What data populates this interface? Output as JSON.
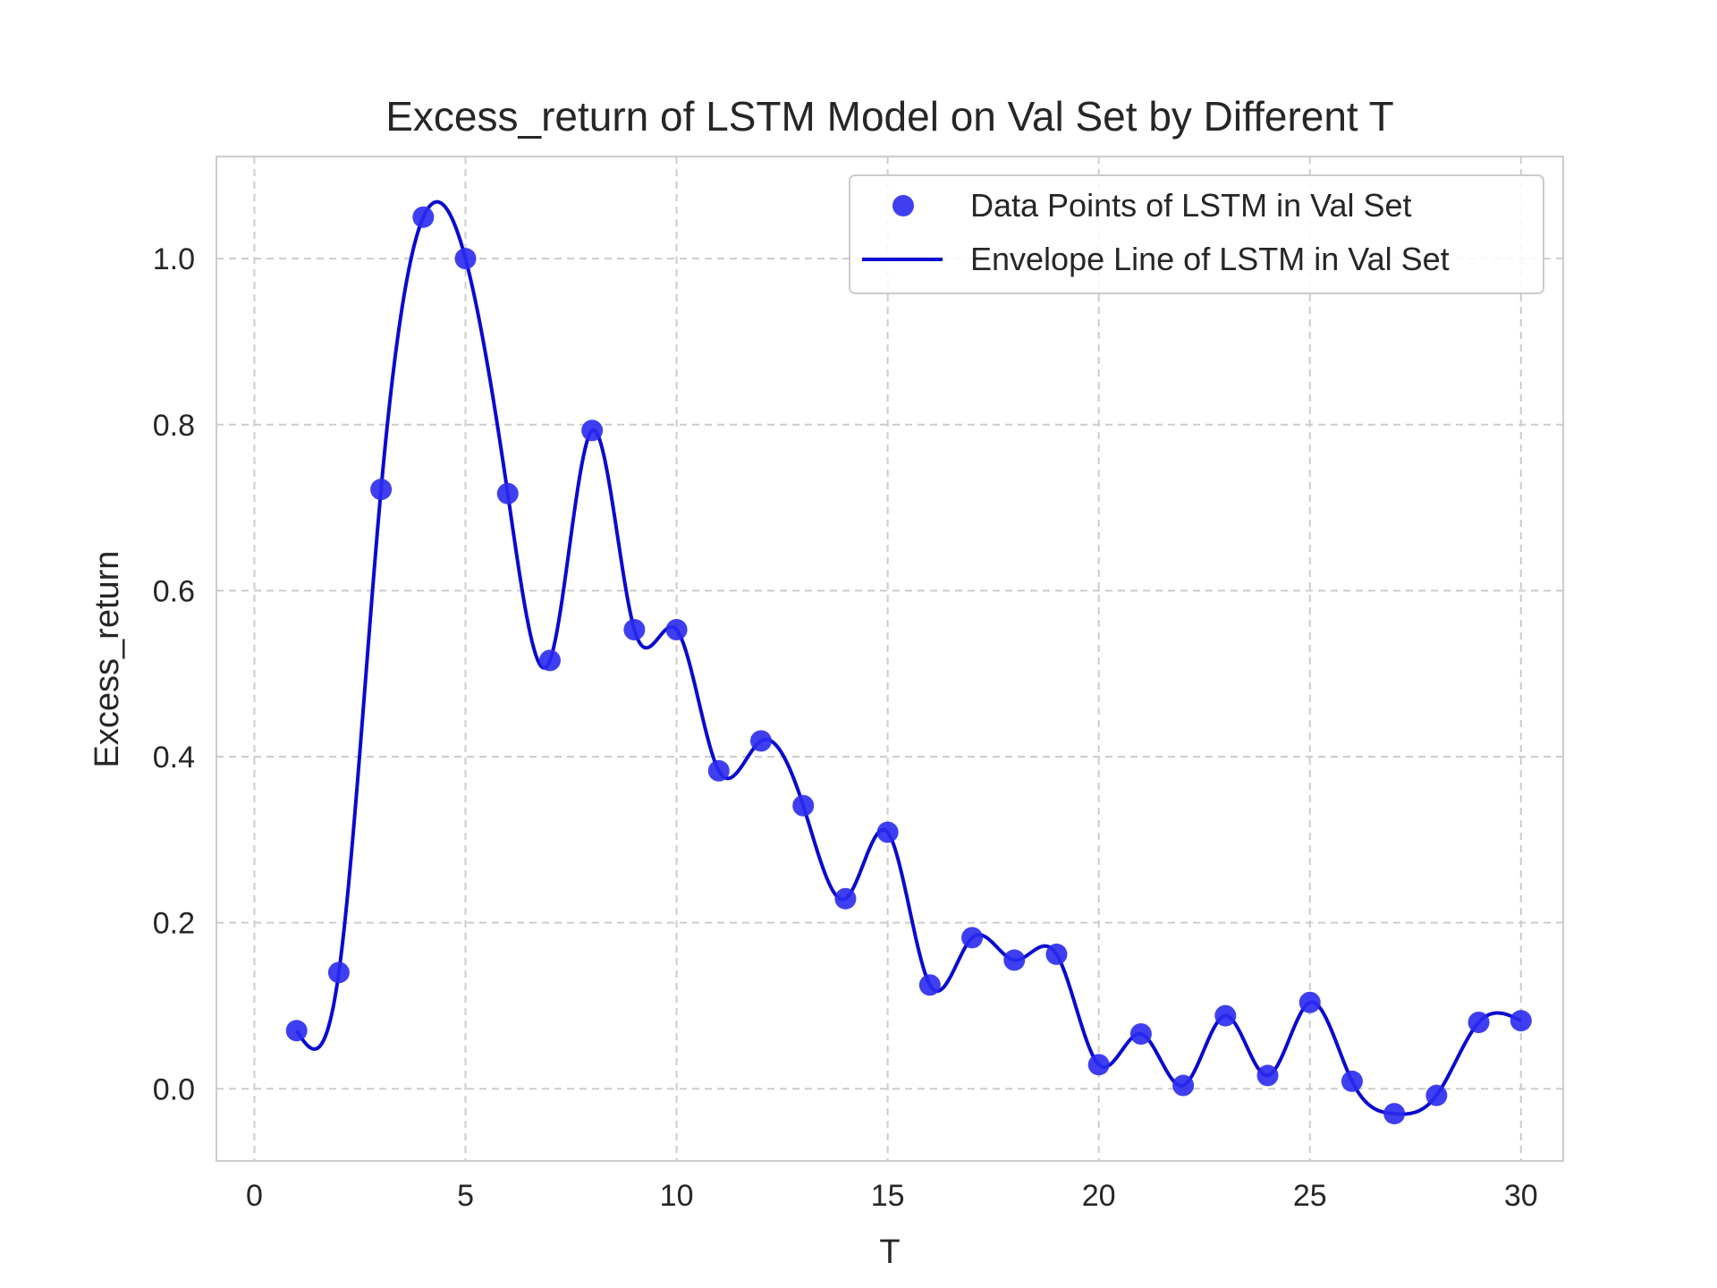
{
  "chart_data": {
    "type": "scatter",
    "title": "Excess_return of LSTM Model on Val Set by Different T",
    "xlabel": "T",
    "ylabel": "Excess_return",
    "xlim": [
      -0.9,
      31.0
    ],
    "ylim": [
      -0.087,
      1.123
    ],
    "xticks": [
      0,
      5,
      10,
      15,
      20,
      25,
      30
    ],
    "yticks": [
      0.0,
      0.2,
      0.4,
      0.6,
      0.8,
      1.0
    ],
    "xtick_labels": [
      "0",
      "5",
      "10",
      "15",
      "20",
      "25",
      "30"
    ],
    "ytick_labels": [
      "0.0",
      "0.2",
      "0.4",
      "0.6",
      "0.8",
      "1.0"
    ],
    "grid": true,
    "legend_position": "top-right",
    "series": [
      {
        "name": "Data Points of LSTM in Val Set",
        "kind": "scatter",
        "color": "#2a2af0",
        "x": [
          1,
          2,
          3,
          4,
          5,
          6,
          7,
          8,
          9,
          10,
          11,
          12,
          13,
          14,
          15,
          16,
          17,
          18,
          19,
          20,
          21,
          22,
          23,
          24,
          25,
          26,
          27,
          28,
          29,
          30
        ],
        "y": [
          0.07,
          0.14,
          0.722,
          1.05,
          1.0,
          0.717,
          0.516,
          0.793,
          0.553,
          0.553,
          0.383,
          0.419,
          0.341,
          0.229,
          0.309,
          0.125,
          0.182,
          0.155,
          0.162,
          0.029,
          0.066,
          0.004,
          0.088,
          0.016,
          0.104,
          0.009,
          -0.03,
          -0.008,
          0.08,
          0.082
        ]
      },
      {
        "name": "Envelope Line of LSTM in Val Set",
        "kind": "line",
        "color": "#0a0ad0",
        "interpolation": "cubic-spline"
      }
    ]
  }
}
